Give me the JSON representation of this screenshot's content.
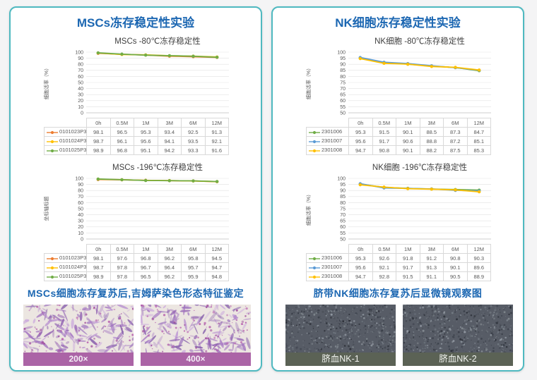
{
  "colors": {
    "page_bg": "#f4f4f5",
    "panel_border": "#4fb9c0",
    "heading_blue": "#1c67b2",
    "chart_title_gray": "#3f3f3f",
    "axis_text_gray": "#595959",
    "grid_line": "#e2e2e2",
    "axis_line": "#bfbfbf",
    "table_border": "#d9d9d9",
    "msc_image_bar": "#ab64a6",
    "nk_image_bar": "#5b6255"
  },
  "panels": [
    {
      "title": "MSCs冻存稳定性实验",
      "caption": "MSCs细胞冻存复苏后,吉姆萨染色形态特征鉴定",
      "bar_color": "#ab64a6",
      "images": [
        {
          "label": "200×"
        },
        {
          "label": "400×"
        }
      ]
    },
    {
      "title": "NK细胞冻存稳定性实验",
      "caption": "脐带NK细胞冻存复苏后显微镜观察图",
      "bar_color": "#5b6255",
      "images": [
        {
          "label": "脐血NK-1"
        },
        {
          "label": "脐血NK-2"
        }
      ]
    }
  ],
  "chart_data": [
    {
      "type": "line",
      "title": "MSCs -80℃冻存稳定性",
      "ylabel": "细胞活率（%）",
      "xlabel": "",
      "categories": [
        "0h",
        "0.5M",
        "1M",
        "3M",
        "6M",
        "12M"
      ],
      "ylim": [
        0,
        100
      ],
      "ytick_step": 10,
      "grid": true,
      "legend_position": "data-table-left",
      "series": [
        {
          "name": "0101023P3",
          "color": "#ED7D31",
          "values": [
            98.1,
            96.5,
            95.3,
            93.4,
            92.5,
            91.3
          ]
        },
        {
          "name": "0101024P3",
          "color": "#FFC000",
          "values": [
            98.7,
            96.1,
            95.6,
            94.1,
            93.5,
            92.1
          ]
        },
        {
          "name": "0101025P3",
          "color": "#70AD47",
          "values": [
            98.9,
            96.8,
            95.1,
            94.2,
            93.3,
            91.6
          ]
        }
      ]
    },
    {
      "type": "line",
      "title": "MSCs -196℃冻存稳定性",
      "ylabel": "坐标轴标题",
      "xlabel": "",
      "categories": [
        "0h",
        "0.5M",
        "1M",
        "3M",
        "6M",
        "12M"
      ],
      "ylim": [
        0,
        100
      ],
      "ytick_step": 10,
      "grid": true,
      "legend_position": "data-table-left",
      "series": [
        {
          "name": "0101023P3",
          "color": "#ED7D31",
          "values": [
            98.1,
            97.6,
            96.8,
            96.2,
            95.8,
            94.5
          ]
        },
        {
          "name": "0101024P3",
          "color": "#FFC000",
          "values": [
            98.7,
            97.8,
            96.7,
            96.4,
            95.7,
            94.7
          ]
        },
        {
          "name": "0101025P3",
          "color": "#70AD47",
          "values": [
            98.9,
            97.8,
            96.5,
            96.2,
            95.9,
            94.8
          ]
        }
      ]
    },
    {
      "type": "line",
      "title": "NK细胞 -80℃冻存稳定性",
      "ylabel": "细胞活率（%）",
      "xlabel": "",
      "categories": [
        "0h",
        "0.5M",
        "1M",
        "3M",
        "6M",
        "12M"
      ],
      "ylim": [
        50,
        100
      ],
      "ytick_step": 5,
      "grid": true,
      "legend_position": "data-table-left",
      "series": [
        {
          "name": "2301006",
          "color": "#70AD47",
          "values": [
            95.3,
            91.5,
            90.1,
            88.5,
            87.3,
            84.7
          ]
        },
        {
          "name": "2301007",
          "color": "#5B9BD5",
          "values": [
            95.6,
            91.7,
            90.6,
            88.8,
            87.2,
            85.1
          ]
        },
        {
          "name": "2301008",
          "color": "#FFC000",
          "values": [
            94.7,
            90.8,
            90.1,
            88.2,
            87.5,
            85.3
          ]
        }
      ]
    },
    {
      "type": "line",
      "title": "NK细胞 -196℃冻存稳定性",
      "ylabel": "细胞活率（%）",
      "xlabel": "",
      "categories": [
        "0h",
        "0.5M",
        "1M",
        "3M",
        "6M",
        "12M"
      ],
      "ylim": [
        50,
        100
      ],
      "ytick_step": 5,
      "grid": true,
      "legend_position": "data-table-left",
      "series": [
        {
          "name": "2301006",
          "color": "#70AD47",
          "values": [
            95.3,
            92.6,
            91.8,
            91.2,
            90.8,
            90.3
          ]
        },
        {
          "name": "2301007",
          "color": "#5B9BD5",
          "values": [
            95.6,
            92.1,
            91.7,
            91.3,
            90.1,
            89.6
          ]
        },
        {
          "name": "2301008",
          "color": "#FFC000",
          "values": [
            94.7,
            92.8,
            91.5,
            91.1,
            90.5,
            88.9
          ]
        }
      ]
    }
  ]
}
